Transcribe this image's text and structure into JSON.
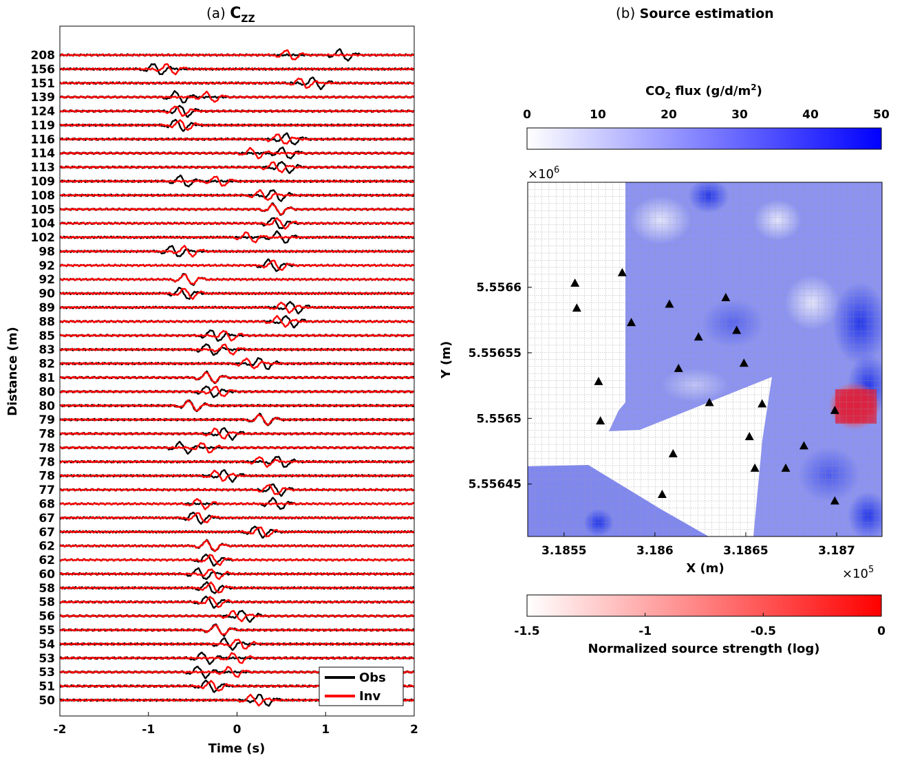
{
  "chart_data": [
    {
      "type": "line",
      "panel": "(a)",
      "title_prefix": "(a) ",
      "title_main": "C",
      "title_sub": "ZZ",
      "xlabel": "Time (s)",
      "ylabel": "Distance (m)",
      "xlim": [
        -2,
        2
      ],
      "xticks": [
        "-2",
        "-1",
        "0",
        "1",
        "2"
      ],
      "trace_labels": [
        "208",
        "156",
        "151",
        "139",
        "124",
        "119",
        "116",
        "114",
        "113",
        "109",
        "108",
        "105",
        "104",
        "102",
        "98",
        "92",
        "92",
        "90",
        "89",
        "88",
        "85",
        "83",
        "82",
        "81",
        "80",
        "80",
        "79",
        "78",
        "78",
        "78",
        "78",
        "77",
        "68",
        "67",
        "67",
        "62",
        "62",
        "60",
        "58",
        "58",
        "56",
        "55",
        "54",
        "53",
        "53",
        "51",
        "50"
      ],
      "obs_centers": [
        1.2,
        -0.9,
        0.9,
        -0.65,
        -0.6,
        -0.65,
        0.6,
        0.55,
        0.55,
        -0.6,
        0.45,
        0.45,
        0.45,
        0.5,
        -0.7,
        0.4,
        -0.55,
        -0.6,
        0.65,
        0.6,
        -0.25,
        -0.3,
        0.3,
        -0.3,
        -0.3,
        -0.5,
        0.3,
        -0.1,
        -0.6,
        0.5,
        -0.1,
        0.45,
        0.45,
        -0.45,
        0.25,
        -0.3,
        -0.3,
        -0.4,
        -0.3,
        -0.3,
        0.1,
        -0.2,
        -0.1,
        -0.35,
        -0.4,
        -0.3,
        0.3
      ],
      "inv_centers": [
        0.6,
        -0.75,
        0.75,
        -0.3,
        -0.65,
        -0.6,
        0.5,
        0.2,
        0.45,
        -0.2,
        0.3,
        0.45,
        0.5,
        0.15,
        -0.55,
        0.45,
        -0.55,
        -0.55,
        0.55,
        0.5,
        -0.1,
        -0.1,
        0.15,
        -0.3,
        -0.2,
        -0.5,
        0.3,
        -0.2,
        -0.35,
        0.3,
        -0.2,
        0.4,
        -0.4,
        -0.4,
        0.3,
        -0.3,
        -0.25,
        -0.25,
        -0.25,
        -0.25,
        0.0,
        -0.2,
        0.05,
        0.0,
        -0.05,
        -0.25,
        0.2
      ],
      "series": [
        {
          "name": "Obs",
          "color": "#000000"
        },
        {
          "name": "Inv",
          "color": "#ff0000"
        }
      ],
      "legend_position": "bottom-right"
    },
    {
      "type": "heatmap",
      "panel": "(b)",
      "title_prefix": "(b) ",
      "title_main": "Source estimation",
      "xlabel": "X (m)",
      "ylabel": "Y (m)",
      "x_exponent_label": "×10",
      "x_exponent": "5",
      "y_exponent_label": "×10",
      "y_exponent": "6",
      "xlim": [
        3.1853,
        3.18725
      ],
      "ylim": [
        5.55641,
        5.55668
      ],
      "xticks": [
        3.1855,
        3.186,
        3.1865,
        3.187
      ],
      "xtick_labels": [
        "3.1855",
        "3.186",
        "3.1865",
        "3.187"
      ],
      "yticks": [
        5.55645,
        5.5565,
        5.55655,
        5.5566
      ],
      "ytick_labels": [
        "5.55645",
        "5.5565",
        "5.55655",
        "5.5566"
      ],
      "grid": true,
      "stations": [
        [
          3.18556,
          5.556603
        ],
        [
          3.18582,
          5.556611
        ],
        [
          3.18557,
          5.556584
        ],
        [
          3.18587,
          5.556573
        ],
        [
          3.18608,
          5.556587
        ],
        [
          3.18624,
          5.556562
        ],
        [
          3.18639,
          5.556592
        ],
        [
          3.18645,
          5.556567
        ],
        [
          3.18613,
          5.556538
        ],
        [
          3.18569,
          5.556528
        ],
        [
          3.18649,
          5.556542
        ],
        [
          3.1857,
          5.556498
        ],
        [
          3.1863,
          5.556512
        ],
        [
          3.18659,
          5.556511
        ],
        [
          3.18682,
          5.556479
        ],
        [
          3.18652,
          5.556486
        ],
        [
          3.1861,
          5.556473
        ],
        [
          3.18655,
          5.556462
        ],
        [
          3.18672,
          5.556462
        ],
        [
          3.18604,
          5.556442
        ],
        [
          3.18699,
          5.556506
        ],
        [
          3.18699,
          5.556437
        ]
      ],
      "colorbar_flux": {
        "label_main": "CO",
        "label_sub": "2",
        "label_rest": " flux (g/d/m",
        "label_sup": "2",
        "label_end": ")",
        "ticks": [
          "0",
          "10",
          "20",
          "30",
          "40",
          "50"
        ],
        "range": [
          0,
          50
        ],
        "colors": [
          "#ffffff",
          "#0000ff"
        ]
      },
      "colorbar_source": {
        "label": "Normalized source strength (log)",
        "ticks": [
          "-1.5",
          "-1",
          "-0.5",
          "0"
        ],
        "range": [
          -1.5,
          0
        ],
        "colors": [
          "#ffffff",
          "#ff0000"
        ]
      }
    }
  ]
}
